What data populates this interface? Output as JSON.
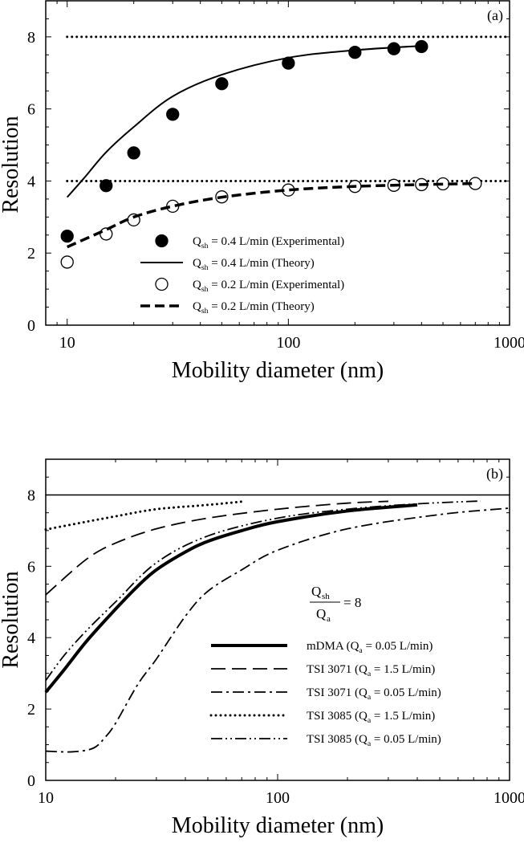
{
  "chart_data": [
    {
      "type": "line",
      "panel_label": "(a)",
      "xlabel": "Mobility diameter (nm)",
      "ylabel": "Resolution",
      "xscale": "log",
      "xlim": [
        8,
        1000
      ],
      "ylim": [
        0,
        9
      ],
      "xticks": [
        "10",
        "100",
        "1000"
      ],
      "yticks": [
        "0",
        "2",
        "4",
        "6",
        "8"
      ],
      "grid": false,
      "legend_position": "bottom-center",
      "reference_lines": [
        {
          "y": 8,
          "style": "dotted"
        },
        {
          "y": 4,
          "style": "dotted"
        }
      ],
      "series": [
        {
          "name": "Qsh = 0.4 L/min (Experimental)",
          "legend": [
            "Q",
            "sh",
            " = 0.4 L/min (Experimental)"
          ],
          "style": "filled-circle",
          "x": [
            10,
            15,
            20,
            30,
            50,
            100,
            200,
            300,
            400
          ],
          "y": [
            2.47,
            3.87,
            4.78,
            5.85,
            6.7,
            7.27,
            7.57,
            7.67,
            7.73
          ]
        },
        {
          "name": "Qsh = 0.4 L/min (Theory)",
          "legend": [
            "Q",
            "sh",
            " = 0.4 L/min (Theory)"
          ],
          "style": "solid",
          "x": [
            10,
            12,
            15,
            20,
            30,
            50,
            100,
            200,
            400
          ],
          "y": [
            3.55,
            4.1,
            4.8,
            5.5,
            6.35,
            6.95,
            7.42,
            7.63,
            7.75
          ]
        },
        {
          "name": "Qsh = 0.2 L/min (Experimental)",
          "legend": [
            "Q",
            "sh",
            " = 0.2 L/min (Experimental)"
          ],
          "style": "open-circle",
          "x": [
            10,
            15,
            20,
            30,
            50,
            100,
            200,
            300,
            400,
            500,
            700
          ],
          "y": [
            1.75,
            2.53,
            2.92,
            3.3,
            3.56,
            3.75,
            3.85,
            3.88,
            3.9,
            3.92,
            3.93
          ]
        },
        {
          "name": "Qsh = 0.2 L/min (Theory)",
          "legend": [
            "Q",
            "sh",
            " = 0.2 L/min (Theory)"
          ],
          "style": "dashed",
          "x": [
            10,
            15,
            20,
            30,
            50,
            100,
            200,
            400,
            700
          ],
          "y": [
            2.17,
            2.65,
            3.0,
            3.3,
            3.55,
            3.75,
            3.85,
            3.9,
            3.93
          ]
        }
      ]
    },
    {
      "type": "line",
      "panel_label": "(b)",
      "xlabel": "Mobility diameter (nm)",
      "ylabel": "Resolution",
      "xscale": "log",
      "xlim": [
        10,
        1000
      ],
      "ylim": [
        0,
        9
      ],
      "xticks": [
        "10",
        "100",
        "1000"
      ],
      "yticks": [
        "0",
        "2",
        "4",
        "6",
        "8"
      ],
      "grid": false,
      "legend_position": "bottom-right",
      "annotation": {
        "num_main": "Q",
        "num_sub": "sh",
        "den_main": "Q",
        "den_sub": "a",
        "rhs": "= 8"
      },
      "reference_lines": [
        {
          "y": 8,
          "style": "solid"
        }
      ],
      "series": [
        {
          "name": "mDMA (Qa = 0.05 L/min)",
          "legend": [
            "mDMA (Q",
            "a",
            " = 0.05 L/min)"
          ],
          "style": "thick-solid",
          "x": [
            10,
            12,
            15,
            20,
            25,
            30,
            40,
            50,
            70,
            100,
            200,
            400
          ],
          "y": [
            2.47,
            3.1,
            3.9,
            4.8,
            5.45,
            5.9,
            6.4,
            6.7,
            7.0,
            7.25,
            7.55,
            7.72
          ]
        },
        {
          "name": "TSI 3071 (Qa = 1.5 L/min)",
          "legend": [
            "TSI 3071 (Q",
            "a",
            " = 1.5 L/min)"
          ],
          "style": "long-dash",
          "x": [
            10,
            15,
            20,
            30,
            50,
            100,
            200,
            300
          ],
          "y": [
            5.2,
            6.2,
            6.65,
            7.05,
            7.35,
            7.6,
            7.77,
            7.82
          ]
        },
        {
          "name": "TSI 3071 (Qa = 0.05 L/min)",
          "legend": [
            "TSI 3071 (Q",
            "a",
            " = 0.05 L/min)"
          ],
          "style": "dash-dot",
          "x": [
            10,
            13,
            16,
            18,
            20,
            25,
            30,
            40,
            50,
            70,
            100,
            200,
            500,
            1000
          ],
          "y": [
            0.82,
            0.8,
            0.9,
            1.2,
            1.6,
            2.7,
            3.4,
            4.6,
            5.3,
            5.9,
            6.45,
            7.05,
            7.45,
            7.63
          ]
        },
        {
          "name": "TSI 3085 (Qa = 1.5 L/min)",
          "legend": [
            "TSI 3085 (Q",
            "a",
            " = 1.5 L/min)"
          ],
          "style": "dotted",
          "x": [
            10,
            15,
            20,
            30,
            50,
            72
          ],
          "y": [
            7.03,
            7.25,
            7.4,
            7.6,
            7.72,
            7.82
          ]
        },
        {
          "name": "TSI 3085 (Qa = 0.05 L/min)",
          "legend": [
            "TSI 3085 (Q",
            "a",
            " = 0.05 L/min)"
          ],
          "style": "dash-dot-dot",
          "x": [
            10,
            12,
            15,
            20,
            30,
            50,
            100,
            200,
            400,
            750
          ],
          "y": [
            2.8,
            3.5,
            4.2,
            5.0,
            6.1,
            6.85,
            7.35,
            7.6,
            7.75,
            7.83
          ]
        }
      ]
    }
  ]
}
